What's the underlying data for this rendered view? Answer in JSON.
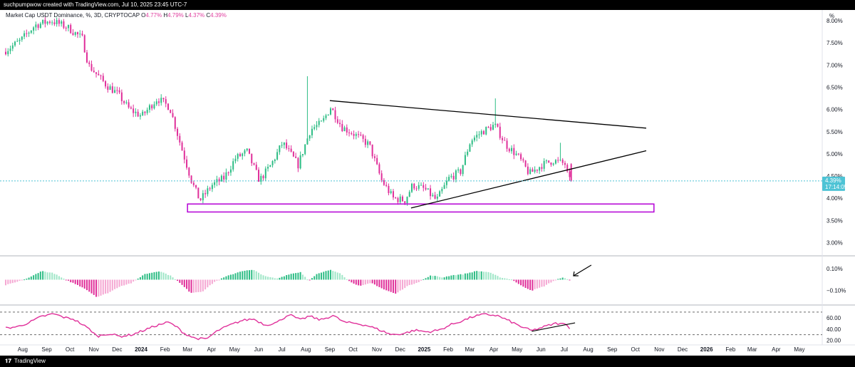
{
  "watermark_text": "suchpumpwow created with TradingView.com, Jul 10, 2025 23:45 UTC-7",
  "footer_brand": "TradingView",
  "legend": {
    "symbol": "Market Cap USDT Dominance, %, 3D, CRYPTOCAP",
    "o_label": "O",
    "o_value": "4.77%",
    "h_label": "H",
    "h_value": "4.79%",
    "l_label": "L",
    "l_value": "4.37%",
    "c_label": "C",
    "c_value": "4.39%"
  },
  "price_axis": {
    "unit_label": "%",
    "last_price": "4.39%",
    "countdown": "17:14:05"
  },
  "colors": {
    "up": "#2ebd85",
    "down": "#e0309a",
    "osc_up_strong": "#2ebd85",
    "osc_up_weak": "#9fe6c7",
    "osc_down_strong": "#e0309a",
    "osc_down_weak": "#f5a8d3",
    "rsi_line": "#e0309a",
    "price_tag": "#4ec3d5",
    "zone": "#b400d6",
    "trendline": "#000000"
  },
  "chart_data": [
    {
      "type": "candlestick",
      "title": "Market Cap USDT Dominance, %, 3D, CRYPTOCAP",
      "ylabel": "%",
      "ylim": [
        2.75,
        8.05
      ],
      "y_ticks": [
        "8.00%",
        "7.50%",
        "7.00%",
        "6.50%",
        "6.00%",
        "5.50%",
        "5.00%",
        "4.50%",
        "4.00%",
        "3.50%",
        "3.00%"
      ],
      "x_ticks": [
        "Aug",
        "Sep",
        "Oct",
        "Nov",
        "Dec",
        "2024",
        "Feb",
        "Mar",
        "Apr",
        "May",
        "Jun",
        "Jul",
        "Aug",
        "Sep",
        "Oct",
        "Nov",
        "Dec",
        "2025",
        "Feb",
        "Mar",
        "Apr",
        "May",
        "Jun",
        "Jul",
        "Aug",
        "Sep",
        "Oct",
        "Nov",
        "Dec",
        "2026",
        "Feb",
        "Mar",
        "Apr",
        "May"
      ],
      "x_range": [
        "2023-07-10",
        "2026-05-25"
      ],
      "close_path": [
        [
          "2023-07-10",
          7.3
        ],
        [
          "2023-08-01",
          7.55
        ],
        [
          "2023-08-20",
          7.9
        ],
        [
          "2023-09-10",
          8.0
        ],
        [
          "2023-10-01",
          7.85
        ],
        [
          "2023-10-20",
          7.6
        ],
        [
          "2023-10-28",
          7.0
        ],
        [
          "2023-11-20",
          6.55
        ],
        [
          "2023-12-05",
          6.35
        ],
        [
          "2023-12-20",
          6.0
        ],
        [
          "2024-01-05",
          5.85
        ],
        [
          "2024-01-25",
          6.25
        ],
        [
          "2024-02-10",
          6.05
        ],
        [
          "2024-02-25",
          5.15
        ],
        [
          "2024-03-10",
          4.35
        ],
        [
          "2024-03-20",
          3.95
        ],
        [
          "2024-04-05",
          4.3
        ],
        [
          "2024-04-20",
          4.45
        ],
        [
          "2024-05-05",
          4.9
        ],
        [
          "2024-05-20",
          5.05
        ],
        [
          "2024-06-05",
          4.4
        ],
        [
          "2024-06-20",
          4.75
        ],
        [
          "2024-07-05",
          5.25
        ],
        [
          "2024-07-25",
          4.75
        ],
        [
          "2024-08-10",
          5.55
        ],
        [
          "2024-08-25",
          5.7
        ],
        [
          "2024-09-05",
          6.05
        ],
        [
          "2024-09-20",
          5.6
        ],
        [
          "2024-10-05",
          5.45
        ],
        [
          "2024-10-25",
          5.2
        ],
        [
          "2024-11-10",
          4.4
        ],
        [
          "2024-11-25",
          4.0
        ],
        [
          "2024-12-10",
          3.95
        ],
        [
          "2024-12-20",
          4.3
        ],
        [
          "2025-01-05",
          4.2
        ],
        [
          "2025-01-20",
          3.95
        ],
        [
          "2025-02-05",
          4.45
        ],
        [
          "2025-02-20",
          4.6
        ],
        [
          "2025-03-05",
          5.3
        ],
        [
          "2025-03-20",
          5.5
        ],
        [
          "2025-04-05",
          5.65
        ],
        [
          "2025-04-20",
          5.2
        ],
        [
          "2025-05-05",
          4.95
        ],
        [
          "2025-05-20",
          4.55
        ],
        [
          "2025-06-05",
          4.75
        ],
        [
          "2025-06-20",
          4.85
        ],
        [
          "2025-07-05",
          4.77
        ],
        [
          "2025-07-10",
          4.39
        ]
      ],
      "notable_wicks": [
        [
          "2024-08-03",
          6.75
        ],
        [
          "2025-04-02",
          6.25
        ],
        [
          "2025-06-25",
          5.25
        ]
      ],
      "last_candle": {
        "date": "2025-07-10",
        "open": 4.77,
        "high": 4.79,
        "low": 4.37,
        "close": 4.39
      },
      "support_zone": {
        "x": [
          "2024-03-01",
          "2025-10-25"
        ],
        "y": [
          3.69,
          3.87
        ]
      },
      "trendlines": [
        {
          "points": [
            [
              "2024-09-01",
              6.2
            ],
            [
              "2025-10-15",
              5.58
            ]
          ]
        },
        {
          "points": [
            [
              "2024-12-15",
              3.78
            ],
            [
              "2025-10-15",
              5.07
            ]
          ]
        }
      ],
      "last_price_level": 4.39
    },
    {
      "type": "bar",
      "subtype": "histogram-oscillator",
      "y_ticks": [
        "0.10%",
        "−0.10%"
      ],
      "ylim": [
        -0.22,
        0.2
      ],
      "shape_path": [
        [
          "2023-07-10",
          -0.05
        ],
        [
          "2023-07-25",
          -0.02
        ],
        [
          "2023-08-10",
          0.02
        ],
        [
          "2023-08-25",
          0.08
        ],
        [
          "2023-09-10",
          0.06
        ],
        [
          "2023-09-25",
          0.0
        ],
        [
          "2023-10-05",
          -0.03
        ],
        [
          "2023-10-20",
          -0.08
        ],
        [
          "2023-11-05",
          -0.16
        ],
        [
          "2023-11-20",
          -0.12
        ],
        [
          "2023-12-05",
          -0.06
        ],
        [
          "2023-12-20",
          -0.03
        ],
        [
          "2024-01-05",
          0.05
        ],
        [
          "2024-01-25",
          0.08
        ],
        [
          "2024-02-10",
          0.03
        ],
        [
          "2024-02-20",
          -0.03
        ],
        [
          "2024-03-05",
          -0.12
        ],
        [
          "2024-03-20",
          -0.11
        ],
        [
          "2024-04-05",
          -0.02
        ],
        [
          "2024-04-20",
          0.03
        ],
        [
          "2024-05-10",
          0.08
        ],
        [
          "2024-05-25",
          0.09
        ],
        [
          "2024-06-10",
          0.03
        ],
        [
          "2024-06-25",
          0.01
        ],
        [
          "2024-07-10",
          0.05
        ],
        [
          "2024-07-25",
          0.07
        ],
        [
          "2024-08-05",
          -0.01
        ],
        [
          "2024-08-15",
          0.05
        ],
        [
          "2024-09-01",
          0.09
        ],
        [
          "2024-09-15",
          0.06
        ],
        [
          "2024-09-25",
          -0.01
        ],
        [
          "2024-10-10",
          -0.06
        ],
        [
          "2024-10-25",
          -0.03
        ],
        [
          "2024-11-10",
          -0.09
        ],
        [
          "2024-11-25",
          -0.13
        ],
        [
          "2024-12-10",
          -0.06
        ],
        [
          "2024-12-25",
          -0.02
        ],
        [
          "2025-01-10",
          0.04
        ],
        [
          "2025-01-25",
          0.02
        ],
        [
          "2025-02-05",
          0.04
        ],
        [
          "2025-02-20",
          0.05
        ],
        [
          "2025-03-10",
          0.08
        ],
        [
          "2025-03-25",
          0.07
        ],
        [
          "2025-04-10",
          0.02
        ],
        [
          "2025-04-25",
          0.0
        ],
        [
          "2025-05-05",
          -0.05
        ],
        [
          "2025-05-20",
          -0.1
        ],
        [
          "2025-06-05",
          -0.06
        ],
        [
          "2025-06-20",
          0.0
        ],
        [
          "2025-07-01",
          0.02
        ],
        [
          "2025-07-10",
          -0.01
        ]
      ]
    },
    {
      "type": "line",
      "subtype": "rsi",
      "y_ticks": [
        "60.00",
        "40.00",
        "20.00"
      ],
      "ylim": [
        12,
        80
      ],
      "bands": [
        70,
        30
      ],
      "path": [
        [
          "2023-07-10",
          42
        ],
        [
          "2023-07-25",
          44
        ],
        [
          "2023-08-10",
          52
        ],
        [
          "2023-08-25",
          62
        ],
        [
          "2023-09-10",
          67
        ],
        [
          "2023-09-25",
          60
        ],
        [
          "2023-10-05",
          58
        ],
        [
          "2023-10-15",
          50
        ],
        [
          "2023-10-28",
          38
        ],
        [
          "2023-11-05",
          27
        ],
        [
          "2023-11-20",
          32
        ],
        [
          "2023-12-05",
          27
        ],
        [
          "2023-12-20",
          30
        ],
        [
          "2024-01-05",
          38
        ],
        [
          "2024-01-20",
          46
        ],
        [
          "2024-02-05",
          52
        ],
        [
          "2024-02-15",
          45
        ],
        [
          "2024-02-25",
          33
        ],
        [
          "2024-03-10",
          24
        ],
        [
          "2024-03-25",
          22
        ],
        [
          "2024-04-10",
          38
        ],
        [
          "2024-04-25",
          47
        ],
        [
          "2024-05-10",
          55
        ],
        [
          "2024-05-25",
          58
        ],
        [
          "2024-06-10",
          47
        ],
        [
          "2024-06-25",
          52
        ],
        [
          "2024-07-10",
          66
        ],
        [
          "2024-07-25",
          56
        ],
        [
          "2024-08-05",
          63
        ],
        [
          "2024-08-20",
          56
        ],
        [
          "2024-09-05",
          64
        ],
        [
          "2024-09-20",
          52
        ],
        [
          "2024-10-05",
          50
        ],
        [
          "2024-10-20",
          46
        ],
        [
          "2024-11-05",
          38
        ],
        [
          "2024-11-20",
          30
        ],
        [
          "2024-12-05",
          32
        ],
        [
          "2024-12-20",
          38
        ],
        [
          "2025-01-05",
          35
        ],
        [
          "2025-01-20",
          38
        ],
        [
          "2025-02-05",
          48
        ],
        [
          "2025-02-20",
          55
        ],
        [
          "2025-03-05",
          62
        ],
        [
          "2025-03-20",
          66
        ],
        [
          "2025-04-05",
          64
        ],
        [
          "2025-04-20",
          55
        ],
        [
          "2025-05-05",
          45
        ],
        [
          "2025-05-20",
          37
        ],
        [
          "2025-06-05",
          44
        ],
        [
          "2025-06-20",
          50
        ],
        [
          "2025-07-05",
          48
        ],
        [
          "2025-07-10",
          38
        ]
      ],
      "divergence_line": [
        [
          "2025-05-20",
          36
        ],
        [
          "2025-07-15",
          51
        ]
      ]
    }
  ]
}
